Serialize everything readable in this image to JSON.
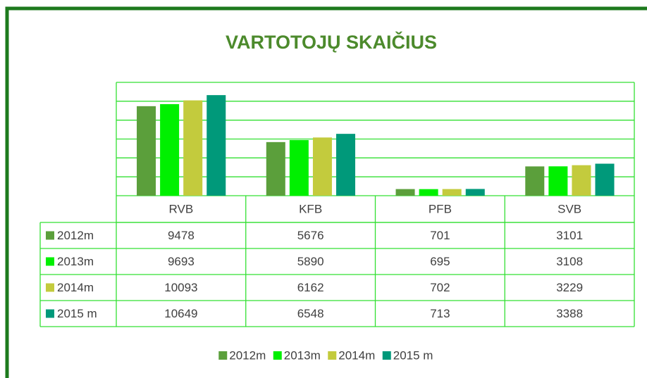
{
  "chart_data": {
    "type": "bar",
    "title": "VARTOTOJŲ SKAIČIUS",
    "categories": [
      "RVB",
      "KFB",
      "PFB",
      "SVB"
    ],
    "series": [
      {
        "name": "2012m",
        "color": "#5b9f3b",
        "values": [
          9478,
          5676,
          701,
          3101
        ]
      },
      {
        "name": "2013m",
        "color": "#00f000",
        "values": [
          9693,
          5890,
          695,
          3108
        ]
      },
      {
        "name": "2014m",
        "color": "#c3cb3d",
        "values": [
          10093,
          6162,
          702,
          3229
        ]
      },
      {
        "name": "2015 m",
        "color": "#00997a",
        "values": [
          10649,
          6548,
          713,
          3388
        ]
      }
    ],
    "ylim": [
      0,
      12000
    ],
    "yticks": [
      0,
      2000,
      4000,
      6000,
      8000,
      10000,
      12000
    ],
    "grid": true,
    "legend": "bottom"
  }
}
